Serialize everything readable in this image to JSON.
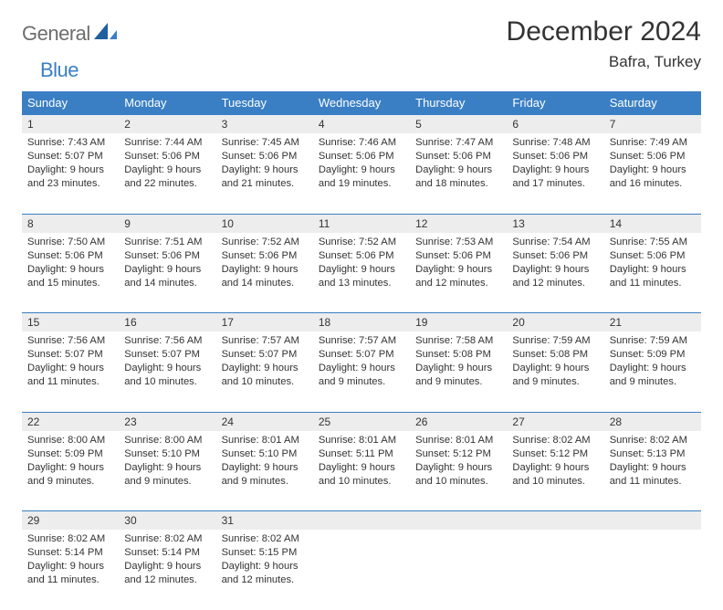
{
  "logo": {
    "general": "General",
    "blue": "Blue"
  },
  "title": "December 2024",
  "location": "Bafra, Turkey",
  "colors": {
    "header_bg": "#3a7fc4",
    "header_text": "#ffffff",
    "daynum_bg": "#ededed",
    "border": "#3a7fc4",
    "text": "#333333",
    "logo_gray": "#6d6d6d",
    "logo_blue": "#3a7fc4"
  },
  "weekdays": [
    "Sunday",
    "Monday",
    "Tuesday",
    "Wednesday",
    "Thursday",
    "Friday",
    "Saturday"
  ],
  "weeks": [
    [
      {
        "d": "1",
        "sr": "7:43 AM",
        "ss": "5:07 PM",
        "dl": "9 hours and 23 minutes."
      },
      {
        "d": "2",
        "sr": "7:44 AM",
        "ss": "5:06 PM",
        "dl": "9 hours and 22 minutes."
      },
      {
        "d": "3",
        "sr": "7:45 AM",
        "ss": "5:06 PM",
        "dl": "9 hours and 21 minutes."
      },
      {
        "d": "4",
        "sr": "7:46 AM",
        "ss": "5:06 PM",
        "dl": "9 hours and 19 minutes."
      },
      {
        "d": "5",
        "sr": "7:47 AM",
        "ss": "5:06 PM",
        "dl": "9 hours and 18 minutes."
      },
      {
        "d": "6",
        "sr": "7:48 AM",
        "ss": "5:06 PM",
        "dl": "9 hours and 17 minutes."
      },
      {
        "d": "7",
        "sr": "7:49 AM",
        "ss": "5:06 PM",
        "dl": "9 hours and 16 minutes."
      }
    ],
    [
      {
        "d": "8",
        "sr": "7:50 AM",
        "ss": "5:06 PM",
        "dl": "9 hours and 15 minutes."
      },
      {
        "d": "9",
        "sr": "7:51 AM",
        "ss": "5:06 PM",
        "dl": "9 hours and 14 minutes."
      },
      {
        "d": "10",
        "sr": "7:52 AM",
        "ss": "5:06 PM",
        "dl": "9 hours and 14 minutes."
      },
      {
        "d": "11",
        "sr": "7:52 AM",
        "ss": "5:06 PM",
        "dl": "9 hours and 13 minutes."
      },
      {
        "d": "12",
        "sr": "7:53 AM",
        "ss": "5:06 PM",
        "dl": "9 hours and 12 minutes."
      },
      {
        "d": "13",
        "sr": "7:54 AM",
        "ss": "5:06 PM",
        "dl": "9 hours and 12 minutes."
      },
      {
        "d": "14",
        "sr": "7:55 AM",
        "ss": "5:06 PM",
        "dl": "9 hours and 11 minutes."
      }
    ],
    [
      {
        "d": "15",
        "sr": "7:56 AM",
        "ss": "5:07 PM",
        "dl": "9 hours and 11 minutes."
      },
      {
        "d": "16",
        "sr": "7:56 AM",
        "ss": "5:07 PM",
        "dl": "9 hours and 10 minutes."
      },
      {
        "d": "17",
        "sr": "7:57 AM",
        "ss": "5:07 PM",
        "dl": "9 hours and 10 minutes."
      },
      {
        "d": "18",
        "sr": "7:57 AM",
        "ss": "5:07 PM",
        "dl": "9 hours and 9 minutes."
      },
      {
        "d": "19",
        "sr": "7:58 AM",
        "ss": "5:08 PM",
        "dl": "9 hours and 9 minutes."
      },
      {
        "d": "20",
        "sr": "7:59 AM",
        "ss": "5:08 PM",
        "dl": "9 hours and 9 minutes."
      },
      {
        "d": "21",
        "sr": "7:59 AM",
        "ss": "5:09 PM",
        "dl": "9 hours and 9 minutes."
      }
    ],
    [
      {
        "d": "22",
        "sr": "8:00 AM",
        "ss": "5:09 PM",
        "dl": "9 hours and 9 minutes."
      },
      {
        "d": "23",
        "sr": "8:00 AM",
        "ss": "5:10 PM",
        "dl": "9 hours and 9 minutes."
      },
      {
        "d": "24",
        "sr": "8:01 AM",
        "ss": "5:10 PM",
        "dl": "9 hours and 9 minutes."
      },
      {
        "d": "25",
        "sr": "8:01 AM",
        "ss": "5:11 PM",
        "dl": "9 hours and 10 minutes."
      },
      {
        "d": "26",
        "sr": "8:01 AM",
        "ss": "5:12 PM",
        "dl": "9 hours and 10 minutes."
      },
      {
        "d": "27",
        "sr": "8:02 AM",
        "ss": "5:12 PM",
        "dl": "9 hours and 10 minutes."
      },
      {
        "d": "28",
        "sr": "8:02 AM",
        "ss": "5:13 PM",
        "dl": "9 hours and 11 minutes."
      }
    ],
    [
      {
        "d": "29",
        "sr": "8:02 AM",
        "ss": "5:14 PM",
        "dl": "9 hours and 11 minutes."
      },
      {
        "d": "30",
        "sr": "8:02 AM",
        "ss": "5:14 PM",
        "dl": "9 hours and 12 minutes."
      },
      {
        "d": "31",
        "sr": "8:02 AM",
        "ss": "5:15 PM",
        "dl": "9 hours and 12 minutes."
      },
      null,
      null,
      null,
      null
    ]
  ],
  "labels": {
    "sunrise": "Sunrise: ",
    "sunset": "Sunset: ",
    "daylight": "Daylight: "
  }
}
